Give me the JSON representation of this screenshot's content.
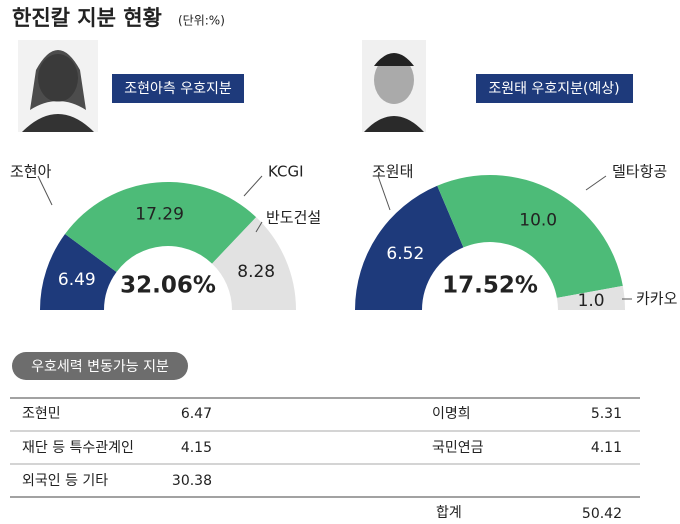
{
  "title": "한진칼 지분 현황",
  "unit": "(단위:%)",
  "chart_data": [
    {
      "type": "half-donut",
      "subtitle": "조현아측 우호지분",
      "categories": [
        "조현아",
        "KCGI",
        "반도건설"
      ],
      "values": [
        6.49,
        17.29,
        8.28
      ],
      "colors": [
        "#1e3a7b",
        "#4dbb78",
        "#e2e2e2"
      ],
      "total": {
        "value": 32.06,
        "label": "32.06%"
      }
    },
    {
      "type": "half-donut",
      "subtitle": "조원태 우호지분(예상)",
      "categories": [
        "조원태",
        "델타항공",
        "카카오"
      ],
      "values": [
        6.52,
        10.0,
        1.0
      ],
      "value_labels": [
        "6.52",
        "10.0",
        "1.0"
      ],
      "colors": [
        "#1e3a7b",
        "#4dbb78",
        "#e2e2e2"
      ],
      "total": {
        "value": 17.52,
        "label": "17.52%"
      }
    }
  ],
  "table": {
    "title": "우호세력 변동가능 지분",
    "left": [
      {
        "name": "조현민",
        "value": 6.47
      },
      {
        "name": "재단 등 특수관계인",
        "value": 4.15
      },
      {
        "name": "외국인 등 기타",
        "value": 30.38
      }
    ],
    "right": [
      {
        "name": "이명희",
        "value": 5.31
      },
      {
        "name": "국민연금",
        "value": 4.11
      }
    ],
    "total": {
      "name": "합계",
      "value": 50.42
    }
  }
}
